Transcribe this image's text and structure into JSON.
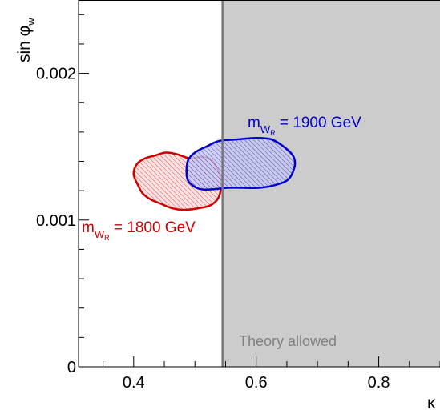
{
  "chart_data": {
    "type": "area",
    "x_axis": {
      "label": "κ",
      "range": [
        0.31,
        0.9
      ],
      "ticks": [
        {
          "value": 0.4,
          "label": "0.4"
        },
        {
          "value": 0.6,
          "label": "0.6"
        },
        {
          "value": 0.8,
          "label": "0.8"
        }
      ]
    },
    "y_axis": {
      "label_main": "sin φ",
      "label_sub": "w",
      "range": [
        0,
        0.0025
      ],
      "ticks": [
        {
          "value": 0,
          "label": "0"
        },
        {
          "value": 0.001,
          "label": "0.001"
        },
        {
          "value": 0.002,
          "label": "0.002"
        }
      ]
    },
    "grid": false,
    "shaded_region": {
      "label": "Theory allowed",
      "x_min": 0.545,
      "color": "#cccccc",
      "boundary_color": "#777777",
      "label_color": "#808080"
    },
    "series": [
      {
        "name": "1800 GeV",
        "annotation": {
          "prefix": "m",
          "sub": "W",
          "subsub": "R",
          "value": " = 1800 GeV"
        },
        "color": "#cc0000",
        "fill": "#f4c2c2",
        "contour": [
          [
            0.4,
            0.00131
          ],
          [
            0.405,
            0.00138
          ],
          [
            0.418,
            0.00142
          ],
          [
            0.435,
            0.00144
          ],
          [
            0.452,
            0.00146
          ],
          [
            0.47,
            0.00145
          ],
          [
            0.492,
            0.00142
          ],
          [
            0.51,
            0.00143
          ],
          [
            0.527,
            0.00141
          ],
          [
            0.54,
            0.00132
          ],
          [
            0.543,
            0.00124
          ],
          [
            0.538,
            0.00115
          ],
          [
            0.525,
            0.0011
          ],
          [
            0.505,
            0.00108
          ],
          [
            0.482,
            0.00107
          ],
          [
            0.463,
            0.00108
          ],
          [
            0.445,
            0.00111
          ],
          [
            0.428,
            0.00114
          ],
          [
            0.415,
            0.00118
          ],
          [
            0.408,
            0.00123
          ]
        ]
      },
      {
        "name": "1900 GeV",
        "annotation": {
          "prefix": "m",
          "sub": "W",
          "subsub": "R",
          "value": " = 1900 GeV"
        },
        "color": "#0000cc",
        "fill": "#c2c2f2",
        "contour": [
          [
            0.487,
            0.00129
          ],
          [
            0.488,
            0.0014
          ],
          [
            0.5,
            0.00146
          ],
          [
            0.518,
            0.0015
          ],
          [
            0.54,
            0.00154
          ],
          [
            0.57,
            0.00155
          ],
          [
            0.6,
            0.00156
          ],
          [
            0.625,
            0.00155
          ],
          [
            0.645,
            0.0015
          ],
          [
            0.66,
            0.00144
          ],
          [
            0.663,
            0.00137
          ],
          [
            0.653,
            0.00128
          ],
          [
            0.632,
            0.00124
          ],
          [
            0.605,
            0.00122
          ],
          [
            0.578,
            0.00122
          ],
          [
            0.553,
            0.00122
          ],
          [
            0.53,
            0.00121
          ],
          [
            0.51,
            0.00121
          ],
          [
            0.495,
            0.00124
          ]
        ]
      }
    ]
  }
}
